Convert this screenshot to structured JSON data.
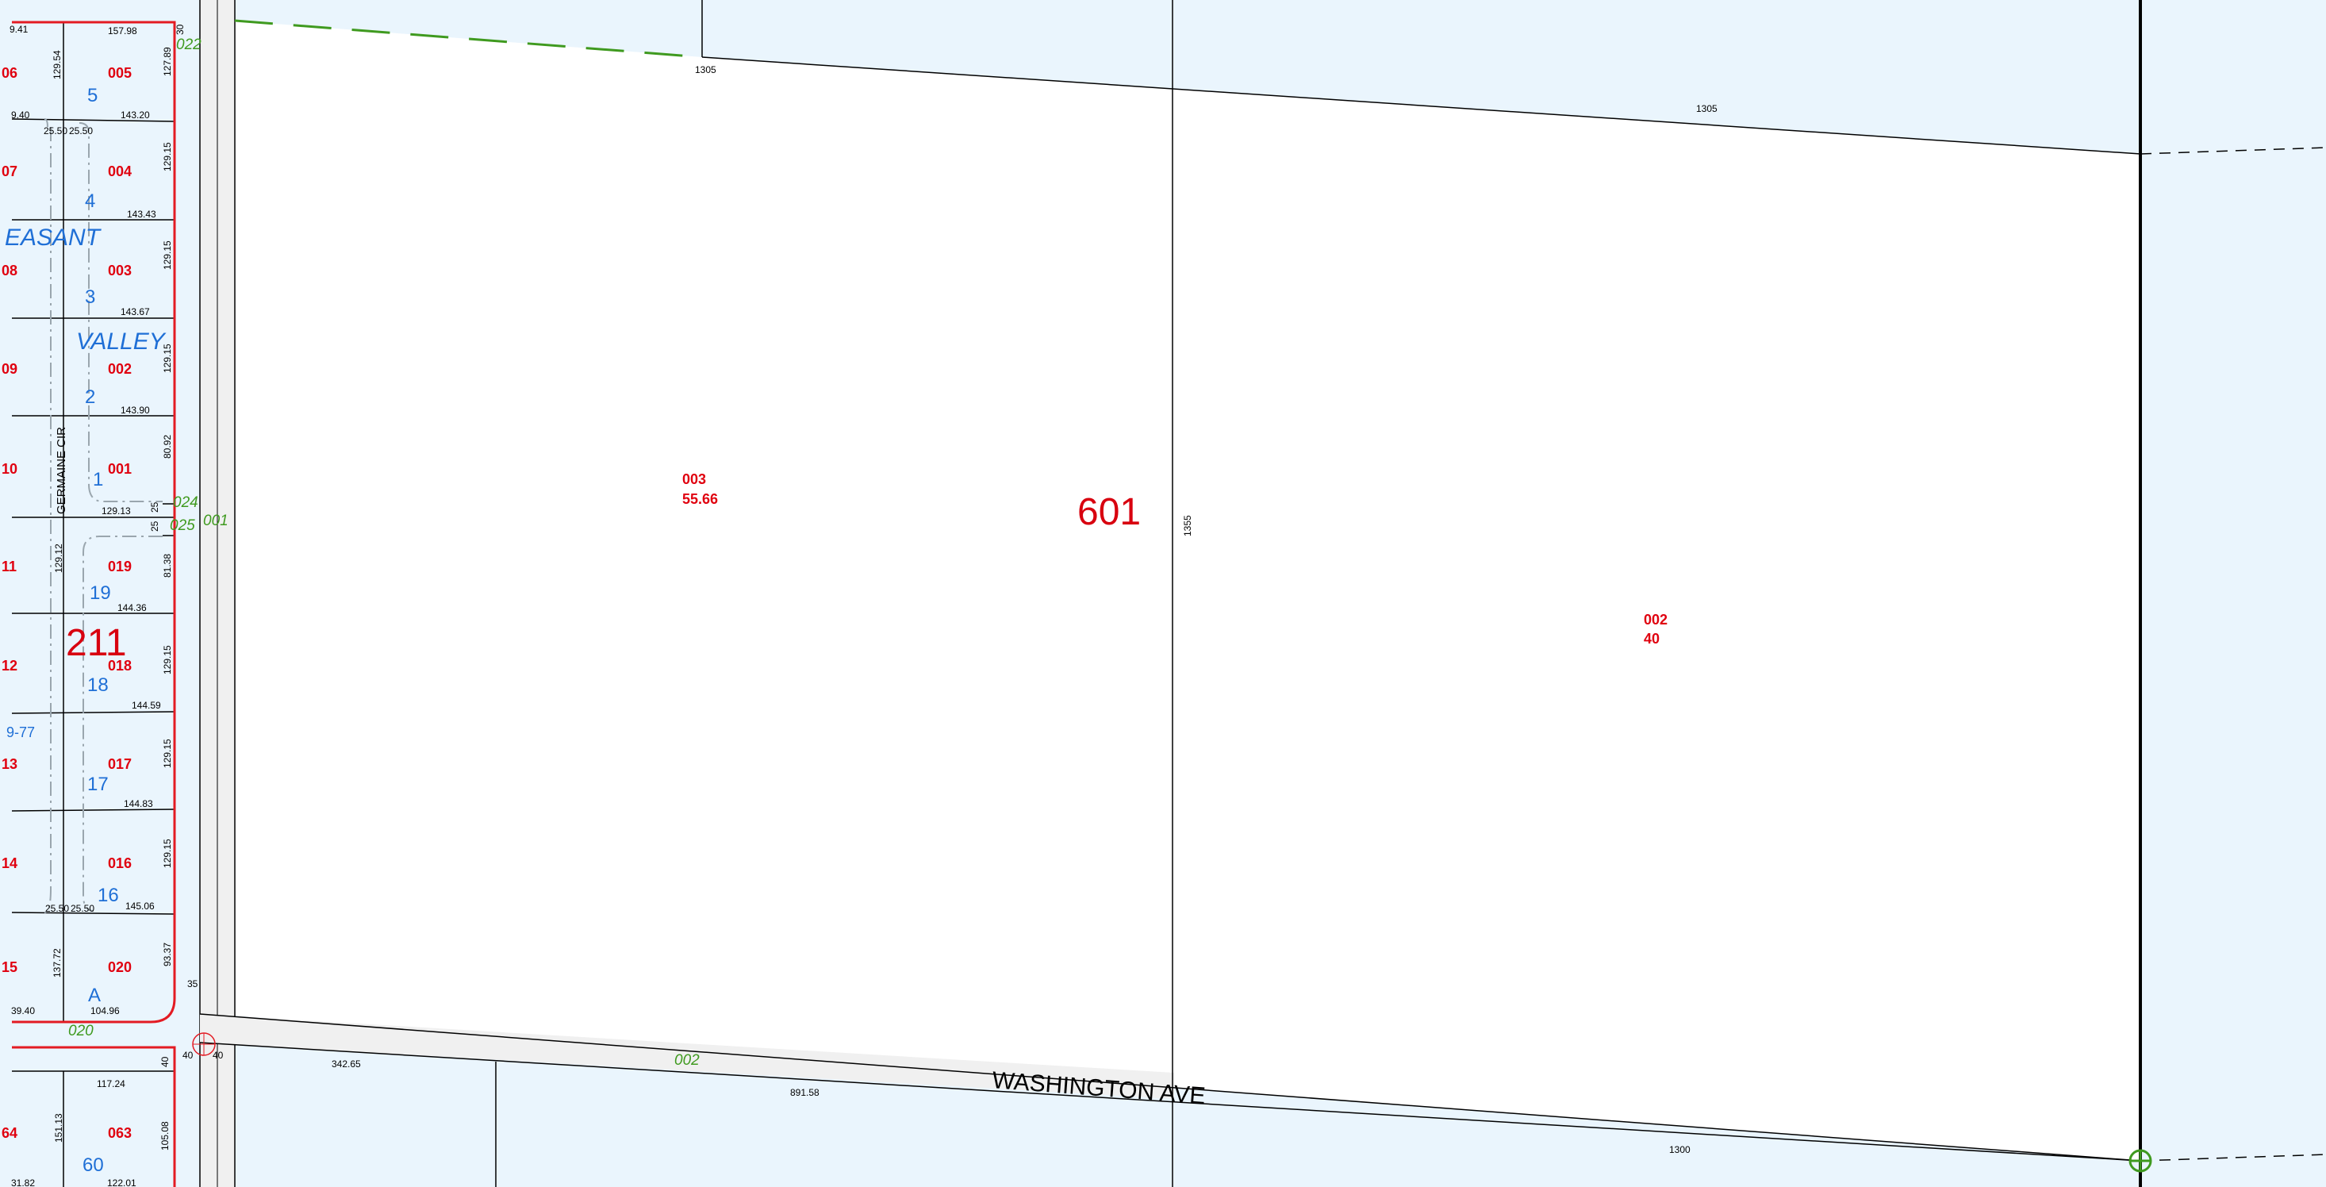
{
  "map": {
    "colors": {
      "background_parcel": "#eaf5fd",
      "road": "#f0f0f0",
      "subdivision_border": "#e31b23",
      "parcel_number": "#e0000f",
      "lot_number": "#1f6fd6",
      "green_label": "#3f9a1f",
      "line": "#000000"
    },
    "blocks": {
      "left": "211",
      "main": "601"
    },
    "street_names": {
      "washington": "WASHINGTON AVE",
      "germaine": "GERMAINE CIR"
    },
    "subdivision_words": [
      "EASANT",
      "VALLEY"
    ],
    "subdivision_ref": "9-77",
    "big_parcels": {
      "p003": {
        "number": "003",
        "acres": "55.66"
      },
      "p002": {
        "number": "002",
        "acres": "40"
      }
    },
    "left_edge_numbers": [
      "06",
      "07",
      "08",
      "09",
      "10",
      "11",
      "12",
      "13",
      "14",
      "15",
      "64"
    ],
    "parcels_col": [
      "005",
      "004",
      "003",
      "002",
      "001",
      "019",
      "018",
      "017",
      "016",
      "020",
      "063"
    ],
    "lots_col": [
      "5",
      "4",
      "3",
      "2",
      "1",
      "19",
      "18",
      "17",
      "16",
      "A",
      "60"
    ],
    "green_labels": {
      "g022": "022",
      "g024": "024",
      "g025": "025",
      "g001": "001",
      "g020": "020",
      "g002": "002"
    },
    "dims": {
      "top_1305_a": "1305",
      "top_1305_b": "1305",
      "mid_1355": "1355",
      "bottom_1300": "1300",
      "d342_65": "342.65",
      "d891_58": "891.58",
      "d157_98": "157.98",
      "d143_20": "143.20",
      "d143_43": "143.43",
      "d143_67": "143.67",
      "d143_90": "143.90",
      "d129_13": "129.13",
      "d144_36": "144.36",
      "d144_59": "144.59",
      "d144_83": "144.83",
      "d145_06": "145.06",
      "d104_96": "104.96",
      "d117_24": "117.24",
      "d122_01": "122.01",
      "d9_41": "9.41",
      "d9_40_top": "9.40",
      "d39_40": "39.40",
      "d31_82": "31.82",
      "d25_50_a": "25.50",
      "d25_50_b": "25.50",
      "d25_50_c": "25.50",
      "d25_50_d": "25.50",
      "v129_54": "129.54",
      "v127_89": "127.89",
      "v30": "30",
      "v129_15_a": "129.15",
      "v129_15_b": "129.15",
      "v129_15_c": "129.15",
      "v80_92": "80.92",
      "v25_a": "25",
      "v25_b": "25",
      "v81_38": "81.38",
      "v129_15_d": "129.15",
      "v129_15_e": "129.15",
      "v129_15_f": "129.15",
      "v93_37": "93.37",
      "v129_12": "129.12",
      "v137_72": "137.72",
      "v151_13": "151.13",
      "v105_08": "105.08",
      "v40_side": "40",
      "d35": "35",
      "d40_a": "40",
      "d40_b": "40"
    }
  }
}
